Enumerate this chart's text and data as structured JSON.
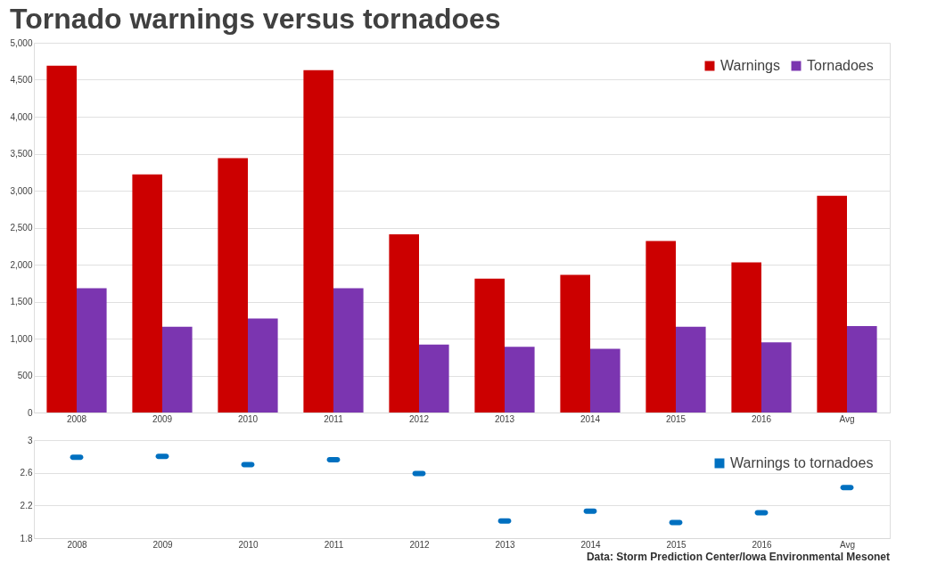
{
  "chart_data": [
    {
      "type": "bar",
      "title": "Tornado warnings versus tornadoes",
      "categories": [
        "2008",
        "2009",
        "2010",
        "2011",
        "2012",
        "2013",
        "2014",
        "2015",
        "2016",
        "Avg"
      ],
      "series": [
        {
          "name": "Warnings",
          "color": "#cc0000",
          "values": [
            4690,
            3220,
            3440,
            4630,
            2410,
            1810,
            1860,
            2320,
            2030,
            2930
          ]
        },
        {
          "name": "Tornadoes",
          "color": "#7b35b0",
          "values": [
            1680,
            1160,
            1270,
            1680,
            920,
            890,
            860,
            1160,
            950,
            1170
          ]
        }
      ],
      "ylim": [
        0,
        5000
      ],
      "yticks": [
        0,
        500,
        {
          "value": 1000,
          "label": "1,000"
        },
        {
          "value": 1500,
          "label": "1,500"
        },
        {
          "value": 2000,
          "label": "2,000"
        },
        {
          "value": 2500,
          "label": "2,500"
        },
        {
          "value": 3000,
          "label": "3,000"
        },
        {
          "value": 3500,
          "label": "3,500"
        },
        {
          "value": 4000,
          "label": "4,000"
        },
        {
          "value": 4500,
          "label": "4,500"
        },
        {
          "value": 5000,
          "label": "5,000"
        }
      ],
      "grid": "y",
      "legend": "top right"
    },
    {
      "type": "scatter",
      "categories": [
        "2008",
        "2009",
        "2010",
        "2011",
        "2012",
        "2013",
        "2014",
        "2015",
        "2016",
        "Avg"
      ],
      "series": [
        {
          "name": "Warnings to tornadoes",
          "color": "#0070c0",
          "values": [
            2.79,
            2.8,
            2.7,
            2.76,
            2.59,
            2.01,
            2.13,
            1.99,
            2.11,
            2.42
          ]
        }
      ],
      "ylim": [
        1.8,
        3
      ],
      "yticks": [
        1.8,
        2.2,
        2.6,
        3
      ],
      "grid": "y",
      "legend": "top right",
      "marker": "square",
      "annotations": [
        "Data: Storm Prediction Center/Iowa Environmental Mesonet"
      ]
    }
  ]
}
